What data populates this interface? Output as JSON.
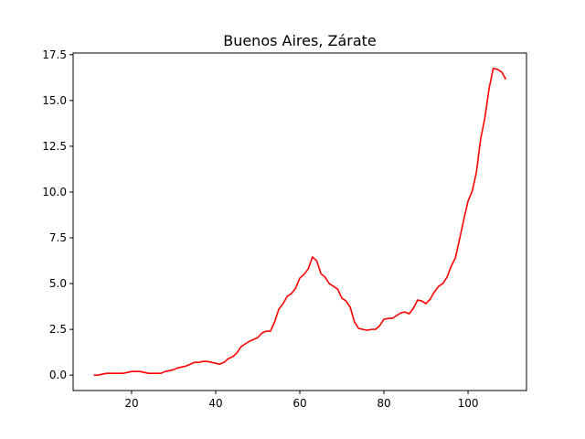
{
  "chart_data": {
    "type": "line",
    "title": "Buenos Aires, Zárate",
    "xlabel": "",
    "ylabel": "",
    "xlim": [
      6.1,
      113.9
    ],
    "ylim": [
      -0.84,
      17.59
    ],
    "xticks": [
      20,
      40,
      60,
      80,
      100
    ],
    "yticks": [
      0.0,
      2.5,
      5.0,
      7.5,
      10.0,
      12.5,
      15.0,
      17.5
    ],
    "xtick_labels": [
      "20",
      "40",
      "60",
      "80",
      "100"
    ],
    "ytick_labels": [
      "0.0",
      "2.5",
      "5.0",
      "7.5",
      "10.0",
      "12.5",
      "15.0",
      "17.5"
    ],
    "grid": false,
    "series": [
      {
        "color": "#ff0000",
        "x": [
          11,
          12,
          13,
          14,
          15,
          16,
          17,
          18,
          19,
          20,
          21,
          22,
          23,
          24,
          25,
          26,
          27,
          28,
          29,
          30,
          31,
          32,
          33,
          34,
          35,
          36,
          37,
          38,
          39,
          40,
          41,
          42,
          43,
          44,
          45,
          46,
          47,
          48,
          49,
          50,
          51,
          52,
          53,
          54,
          55,
          56,
          57,
          58,
          59,
          60,
          61,
          62,
          63,
          64,
          65,
          66,
          67,
          68,
          69,
          70,
          71,
          72,
          73,
          74,
          75,
          76,
          77,
          78,
          79,
          80,
          81,
          82,
          83,
          84,
          85,
          86,
          87,
          88,
          89,
          90,
          91,
          92,
          93,
          94,
          95,
          96,
          97,
          98,
          99,
          100,
          101,
          102,
          103,
          104,
          105,
          106,
          107,
          108,
          109
        ],
        "y": [
          0.0,
          0.0,
          0.05,
          0.1,
          0.1,
          0.1,
          0.1,
          0.1,
          0.15,
          0.2,
          0.2,
          0.2,
          0.15,
          0.1,
          0.1,
          0.1,
          0.1,
          0.2,
          0.25,
          0.3,
          0.4,
          0.45,
          0.5,
          0.6,
          0.7,
          0.7,
          0.75,
          0.75,
          0.7,
          0.65,
          0.6,
          0.7,
          0.9,
          1.0,
          1.2,
          1.55,
          1.7,
          1.85,
          1.95,
          2.05,
          2.3,
          2.4,
          2.4,
          2.9,
          3.6,
          3.9,
          4.3,
          4.45,
          4.75,
          5.3,
          5.5,
          5.8,
          6.45,
          6.25,
          5.55,
          5.35,
          5.0,
          4.85,
          4.7,
          4.2,
          4.05,
          3.7,
          2.9,
          2.55,
          2.5,
          2.45,
          2.5,
          2.5,
          2.7,
          3.05,
          3.1,
          3.1,
          3.25,
          3.4,
          3.45,
          3.35,
          3.65,
          4.1,
          4.05,
          3.9,
          4.15,
          4.55,
          4.85,
          5.0,
          5.35,
          5.95,
          6.4,
          7.45,
          8.5,
          9.5,
          10.05,
          11.1,
          12.9,
          14.05,
          15.65,
          16.75,
          16.7,
          16.55,
          16.15
        ]
      }
    ]
  }
}
